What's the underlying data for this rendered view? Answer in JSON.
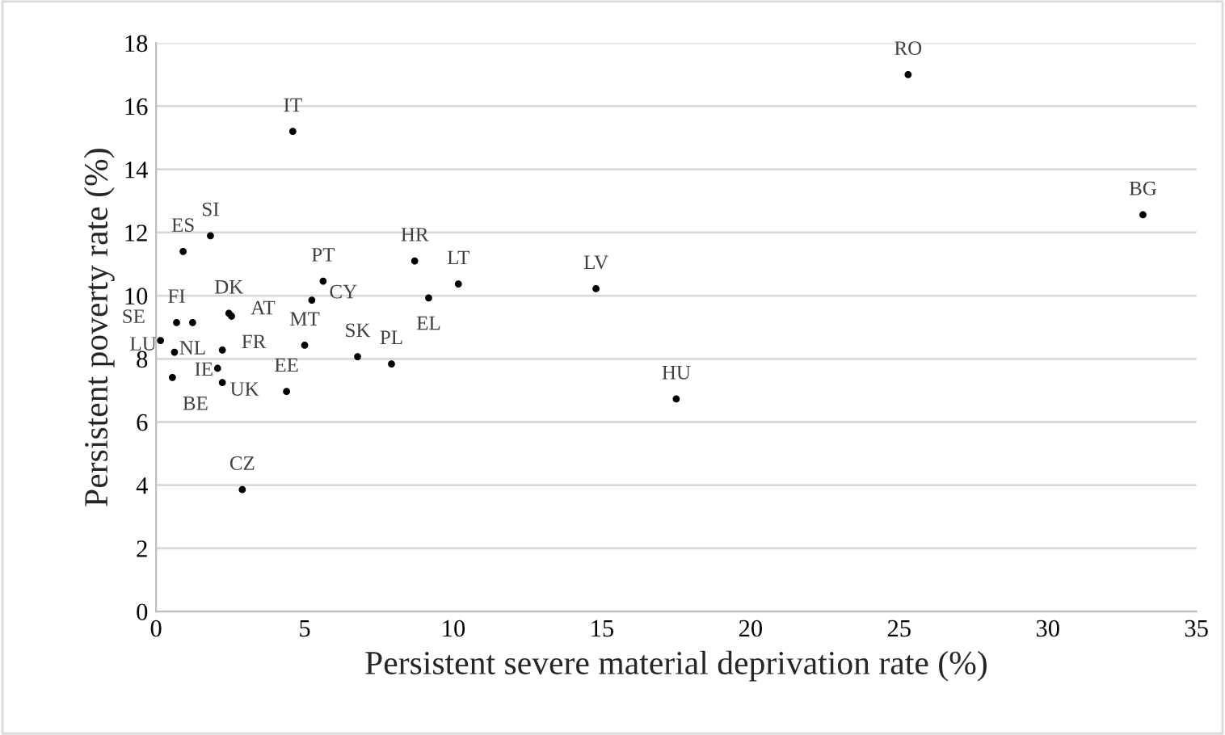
{
  "chart_data": {
    "type": "scatter",
    "xlabel": "Persistent severe material deprivation rate (%)",
    "ylabel": "Persistent poverty rate (%)",
    "series": [
      {
        "color": "#000000",
        "marker": "circle",
        "x": [
          0.91,
          1.83,
          8.7,
          5.62,
          10.17,
          5.24,
          9.17,
          2.45,
          2.54,
          0.69,
          1.23,
          0.15,
          0.62,
          2.23,
          5.0,
          6.78,
          7.92,
          0.55,
          2.07,
          2.23,
          4.39,
          2.9,
          14.8,
          17.5,
          4.6,
          25.3,
          33.2
        ],
        "values": [
          11.4,
          11.9,
          11.1,
          10.46,
          10.37,
          9.86,
          9.93,
          9.44,
          9.35,
          9.15,
          9.15,
          8.58,
          8.21,
          8.28,
          8.43,
          8.07,
          7.84,
          7.41,
          7.7,
          7.25,
          6.97,
          3.86,
          10.22,
          6.73,
          15.2,
          17.0,
          12.56
        ]
      }
    ],
    "annotations": [
      {
        "text": "ES",
        "x": 0.91,
        "y": 11.4
      },
      {
        "text": "SI",
        "x": 1.83,
        "y": 11.9
      },
      {
        "text": "HR",
        "x": 8.7,
        "y": 11.1
      },
      {
        "text": "PT",
        "x": 5.62,
        "y": 10.46
      },
      {
        "text": "LT",
        "x": 10.17,
        "y": 10.37
      },
      {
        "text": "CY",
        "x": 5.24,
        "y": 9.86
      },
      {
        "text": "EL",
        "x": 9.17,
        "y": 9.93
      },
      {
        "text": "DK",
        "x": 2.45,
        "y": 9.44
      },
      {
        "text": "AT",
        "x": 2.54,
        "y": 9.35
      },
      {
        "text": "FI",
        "x": 0.69,
        "y": 9.15
      },
      {
        "text": "NL",
        "x": 1.23,
        "y": 9.15
      },
      {
        "text": "LU",
        "x": 0.62,
        "y": 8.21
      },
      {
        "text": "FR",
        "x": 2.23,
        "y": 8.28
      },
      {
        "text": "MT",
        "x": 5.0,
        "y": 8.43
      },
      {
        "text": "SK",
        "x": 6.78,
        "y": 8.07
      },
      {
        "text": "PL",
        "x": 7.92,
        "y": 7.84
      },
      {
        "text": "IE",
        "x": 0.55,
        "y": 7.41
      },
      {
        "text": "UK",
        "x": 2.07,
        "y": 7.7
      },
      {
        "text": "SE",
        "x": 0.15,
        "y": 8.58
      },
      {
        "text": "BE",
        "x": 2.23,
        "y": 7.25
      },
      {
        "text": "EE",
        "x": 4.39,
        "y": 6.97
      },
      {
        "text": "CZ",
        "x": 2.9,
        "y": 3.86
      },
      {
        "text": "LV",
        "x": 14.8,
        "y": 10.22
      },
      {
        "text": "HU",
        "x": 17.5,
        "y": 6.73
      },
      {
        "text": "IT",
        "x": 4.6,
        "y": 15.2
      },
      {
        "text": "RO",
        "x": 25.3,
        "y": 17.0
      },
      {
        "text": "BG",
        "x": 33.2,
        "y": 12.56
      }
    ],
    "xlim": [
      0,
      35
    ],
    "xticks": [
      0,
      5,
      10,
      15,
      20,
      25,
      30,
      35
    ],
    "ylim": [
      0,
      18
    ],
    "yticks": [
      0,
      2,
      4,
      6,
      8,
      10,
      12,
      14,
      16,
      18
    ],
    "grid": "y",
    "legend": false
  }
}
